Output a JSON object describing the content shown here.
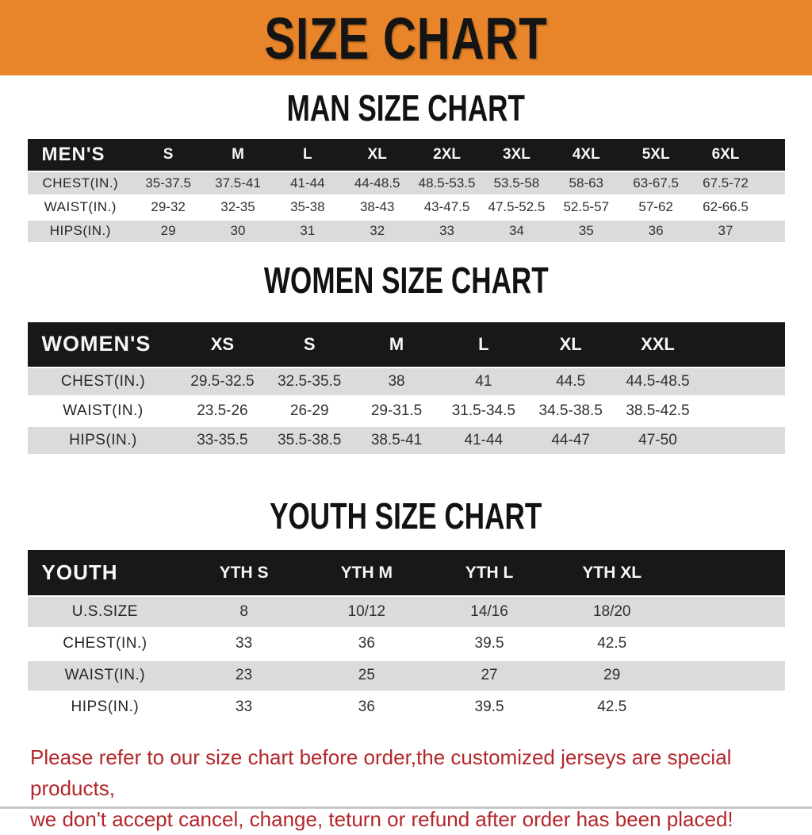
{
  "banner": {
    "title": "SIZE CHART"
  },
  "colors": {
    "banner_bg": "#E8842A",
    "header_bar": "#181818",
    "row_alt": "#DBDBDB",
    "notice_text": "#B3272B"
  },
  "sections": [
    {
      "id": "men",
      "heading": "MAN SIZE CHART",
      "corner_label": "MEN'S",
      "columns": [
        "S",
        "M",
        "L",
        "XL",
        "2XL",
        "3XL",
        "4XL",
        "5XL",
        "6XL"
      ],
      "rows": [
        {
          "label": "CHEST(IN.)",
          "values": [
            "35-37.5",
            "37.5-41",
            "41-44",
            "44-48.5",
            "48.5-53.5",
            "53.5-58",
            "58-63",
            "63-67.5",
            "67.5-72"
          ]
        },
        {
          "label": "WAIST(IN.)",
          "values": [
            "29-32",
            "32-35",
            "35-38",
            "38-43",
            "43-47.5",
            "47.5-52.5",
            "52.5-57",
            "57-62",
            "62-66.5"
          ]
        },
        {
          "label": "HIPS(IN.)",
          "values": [
            "29",
            "30",
            "31",
            "32",
            "33",
            "34",
            "35",
            "36",
            "37"
          ]
        }
      ]
    },
    {
      "id": "women",
      "heading": "WOMEN SIZE CHART",
      "corner_label": "WOMEN'S",
      "columns": [
        "XS",
        "S",
        "M",
        "L",
        "XL",
        "XXL"
      ],
      "rows": [
        {
          "label": "CHEST(IN.)",
          "values": [
            "29.5-32.5",
            "32.5-35.5",
            "38",
            "41",
            "44.5",
            "44.5-48.5"
          ]
        },
        {
          "label": "WAIST(IN.)",
          "values": [
            "23.5-26",
            "26-29",
            "29-31.5",
            "31.5-34.5",
            "34.5-38.5",
            "38.5-42.5"
          ]
        },
        {
          "label": "HIPS(IN.)",
          "values": [
            "33-35.5",
            "35.5-38.5",
            "38.5-41",
            "41-44",
            "44-47",
            "47-50"
          ]
        }
      ]
    },
    {
      "id": "youth",
      "heading": "YOUTH SIZE CHART",
      "corner_label": "YOUTH",
      "columns": [
        "YTH S",
        "YTH M",
        "YTH L",
        "YTH XL"
      ],
      "rows": [
        {
          "label": "U.S.SIZE",
          "values": [
            "8",
            "10/12",
            "14/16",
            "18/20"
          ]
        },
        {
          "label": "CHEST(IN.)",
          "values": [
            "33",
            "36",
            "39.5",
            "42.5"
          ]
        },
        {
          "label": "WAIST(IN.)",
          "values": [
            "23",
            "25",
            "27",
            "29"
          ]
        },
        {
          "label": "HIPS(IN.)",
          "values": [
            "33",
            "36",
            "39.5",
            "42.5"
          ]
        }
      ]
    }
  ],
  "notice": {
    "line1": "Please refer to our size chart before order,the customized jerseys are special products,",
    "line2": "we don't accept cancel, change, teturn or refund after order has been placed!"
  }
}
